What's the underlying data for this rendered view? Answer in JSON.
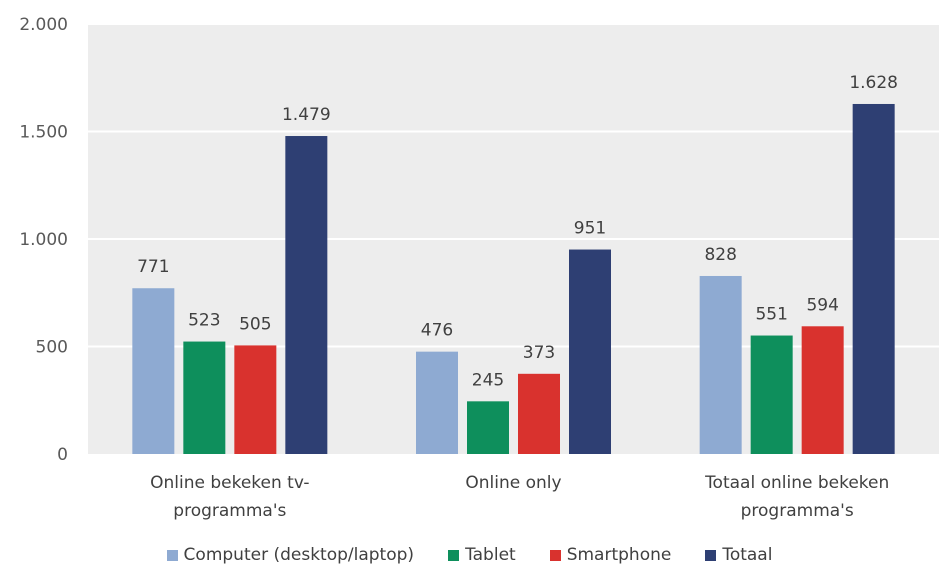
{
  "chart_data": {
    "type": "bar",
    "categories": [
      [
        "Online bekeken tv-",
        "programma's"
      ],
      [
        "Online only"
      ],
      [
        "Totaal online bekeken",
        "programma's"
      ]
    ],
    "series": [
      {
        "name": "Computer (desktop/laptop)",
        "color": "#8eaad2",
        "values": [
          771,
          476,
          828
        ],
        "labels": [
          "771",
          "476",
          "828"
        ]
      },
      {
        "name": "Tablet",
        "color": "#0e8f5c",
        "values": [
          523,
          245,
          551
        ],
        "labels": [
          "523",
          "245",
          "551"
        ]
      },
      {
        "name": "Smartphone",
        "color": "#d9322e",
        "values": [
          505,
          373,
          594
        ],
        "labels": [
          "505",
          "373",
          "594"
        ]
      },
      {
        "name": "Totaal",
        "color": "#2e3f73",
        "values": [
          1479,
          951,
          1628
        ],
        "labels": [
          "1.479",
          "951",
          "1.628"
        ]
      }
    ],
    "ylim": [
      0,
      2000
    ],
    "yticks": [
      0,
      500,
      1000,
      1500,
      2000
    ],
    "ytick_labels": [
      "0",
      "500",
      "1.000",
      "1.500",
      "2.000"
    ],
    "grid": true,
    "legend_position": "bottom"
  }
}
